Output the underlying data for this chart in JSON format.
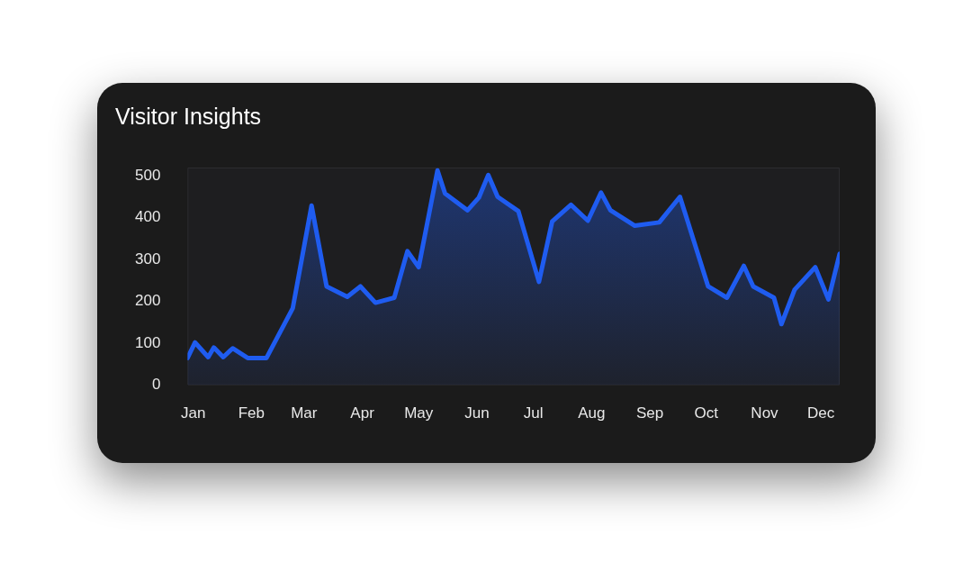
{
  "chart_data": {
    "type": "area",
    "title": "Visitor Insights",
    "x": [
      "--01-12",
      "--01-16",
      "--01-23",
      "--01-26",
      "--01-31",
      "--02-05",
      "--02-13",
      "--02-23",
      "--03-09",
      "--03-19",
      "--03-27",
      "--04-07",
      "--04-14",
      "--04-22",
      "--05-02",
      "--05-09",
      "--05-15",
      "--05-25",
      "--05-29",
      "--06-10",
      "--06-16",
      "--06-21",
      "--06-26",
      "--07-07",
      "--07-18",
      "--07-25",
      "--08-04",
      "--08-13",
      "--08-20",
      "--08-25",
      "--09-07",
      "--09-20",
      "--10-01",
      "--10-16",
      "--10-26",
      "--11-04",
      "--11-09",
      "--11-20",
      "--11-24",
      "--12-01",
      "--12-12",
      "--12-19",
      "--12-25"
    ],
    "series": [
      {
        "color": "#1f5cf0",
        "values": [
          65,
          102,
          67,
          90,
          67,
          88,
          65,
          65,
          184,
          429,
          236,
          211,
          236,
          197,
          209,
          320,
          282,
          513,
          458,
          418,
          448,
          502,
          450,
          416,
          247,
          391,
          431,
          393,
          460,
          418,
          381,
          389,
          450,
          236,
          209,
          285,
          236,
          209,
          146,
          228,
          282,
          205,
          314
        ]
      }
    ],
    "xlim": [
      "--01-12",
      "--12-25"
    ],
    "xticks": [
      {
        "value": "--01-15",
        "label": "Jan"
      },
      {
        "value": "--02-15",
        "label": "Feb"
      },
      {
        "value": "--03-15",
        "label": "Mar"
      },
      {
        "value": "--04-15",
        "label": "Apr"
      },
      {
        "value": "--05-15",
        "label": "May"
      },
      {
        "value": "--06-15",
        "label": "Jun"
      },
      {
        "value": "--07-15",
        "label": "Jul"
      },
      {
        "value": "--08-15",
        "label": "Aug"
      },
      {
        "value": "--09-15",
        "label": "Sep"
      },
      {
        "value": "--10-15",
        "label": "Oct"
      },
      {
        "value": "--11-15",
        "label": "Nov"
      },
      {
        "value": "--12-15",
        "label": "Dec"
      }
    ],
    "ylim": [
      0,
      520
    ],
    "yticks": [
      0,
      100,
      200,
      300,
      400,
      500
    ],
    "grid": false,
    "legend": false,
    "marker": "none",
    "line_style": "solid"
  }
}
